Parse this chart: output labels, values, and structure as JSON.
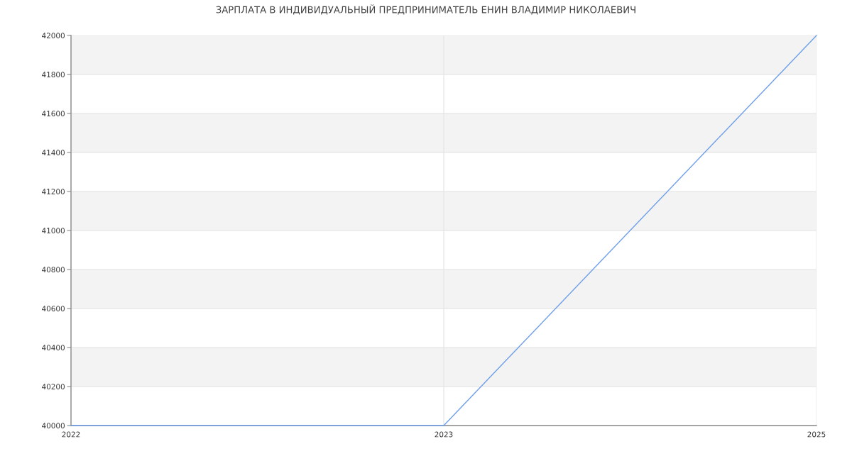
{
  "chart_data": {
    "type": "line",
    "title": "ЗАРПЛАТА В ИНДИВИДУАЛЬНЫЙ ПРЕДПРИНИМАТЕЛЬ ЕНИН ВЛАДИМИР НИКОЛАЕВИЧ",
    "categories": [
      "2022",
      "2023",
      "2025"
    ],
    "series": [
      {
        "color": "#6d9eeb",
        "values": [
          40000,
          40000,
          42000
        ]
      }
    ],
    "ylim": [
      40000,
      42000
    ],
    "yticks": [
      40000,
      40200,
      40400,
      40600,
      40800,
      41000,
      41200,
      41400,
      41600,
      41800,
      42000
    ],
    "grid": true,
    "marker": "none",
    "line_style": "solid",
    "bands": [
      {
        "axis": "y",
        "from": 40200,
        "to": 40400,
        "color": "#f3f3f3"
      },
      {
        "axis": "y",
        "from": 40600,
        "to": 40800,
        "color": "#f3f3f3"
      },
      {
        "axis": "y",
        "from": 41000,
        "to": 41200,
        "color": "#f3f3f3"
      },
      {
        "axis": "y",
        "from": 41400,
        "to": 41600,
        "color": "#f3f3f3"
      },
      {
        "axis": "y",
        "from": 41800,
        "to": 42000,
        "color": "#f3f3f3"
      }
    ]
  }
}
